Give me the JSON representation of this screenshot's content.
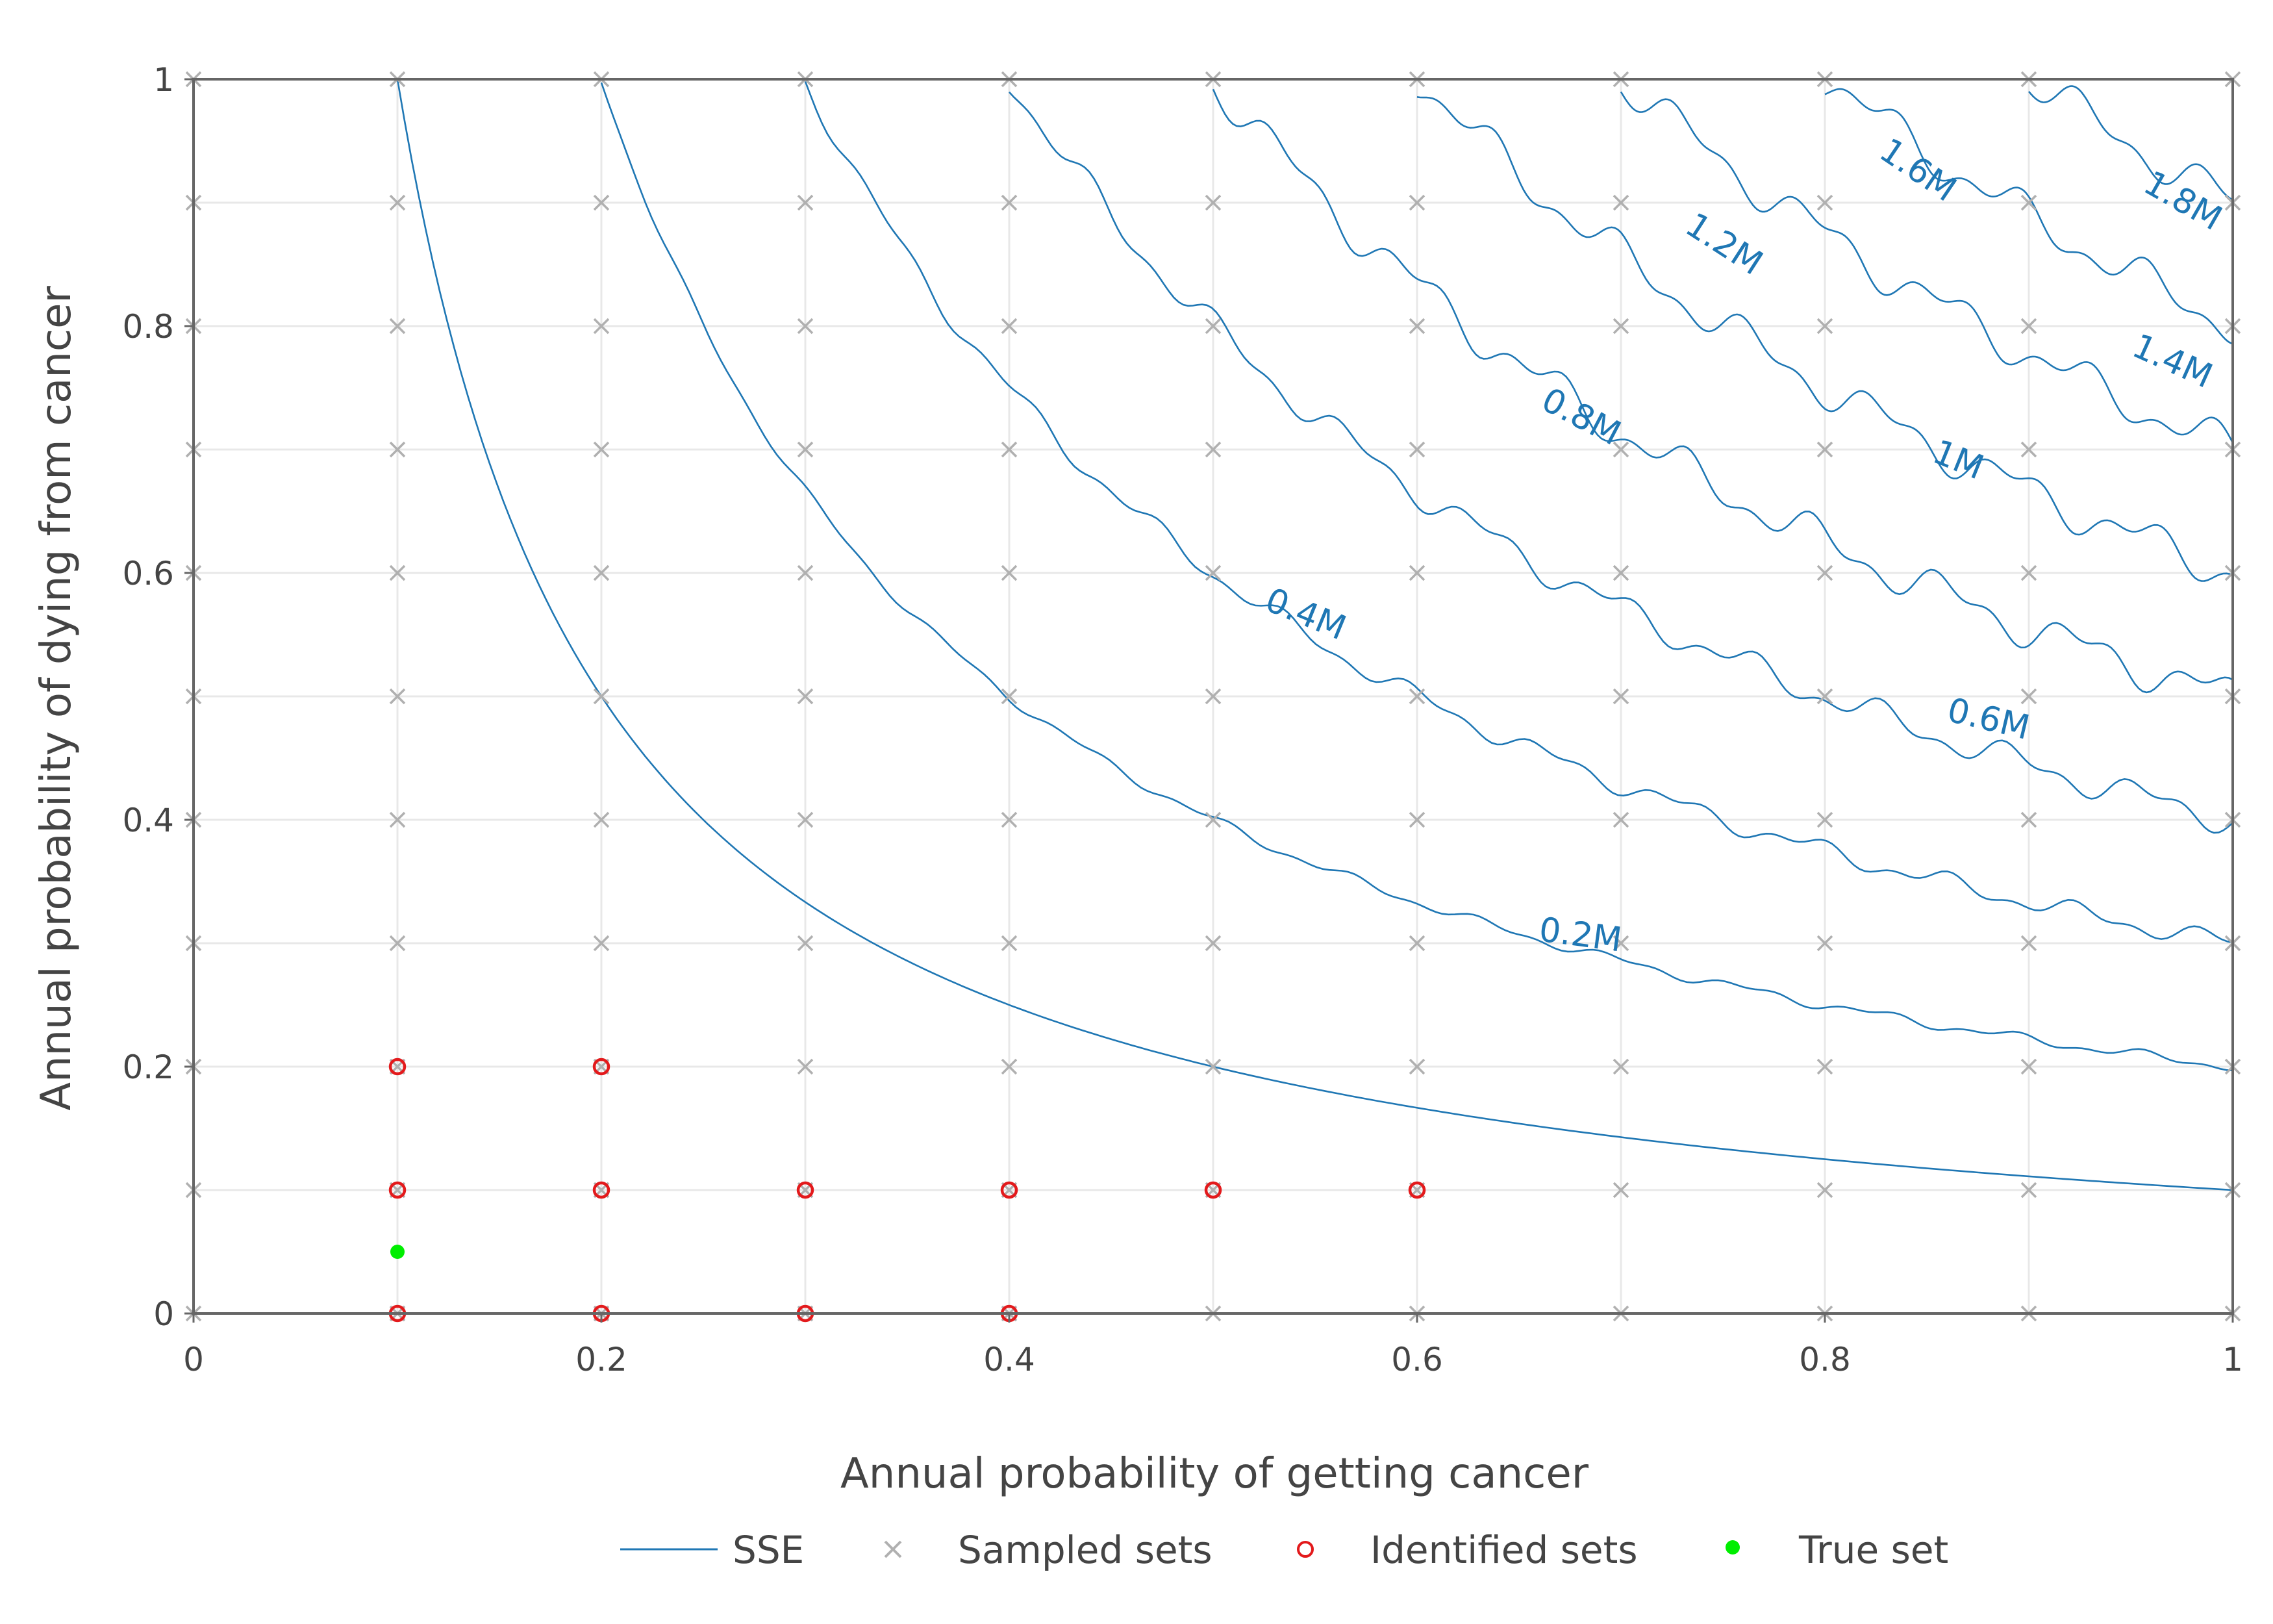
{
  "chart_data": {
    "type": "scatter",
    "xlabel": "Annual probability of getting cancer",
    "ylabel": "Annual probability of dying from cancer",
    "xlim": [
      0,
      1
    ],
    "ylim": [
      0,
      1
    ],
    "xticks": [
      0,
      0.2,
      0.4,
      0.6,
      0.8,
      1
    ],
    "xtick_labels": [
      "0",
      "0.2",
      "0.4",
      "0.6",
      "0.8",
      "1"
    ],
    "yticks": [
      0,
      0.2,
      0.4,
      0.6,
      0.8,
      1
    ],
    "ytick_labels": [
      "0",
      "0.2",
      "0.4",
      "0.6",
      "0.8",
      "1"
    ],
    "grid": true,
    "legend_position": "bottom",
    "colors": {
      "contour": "#1f77b4",
      "sampled": "#b0b0b0",
      "identified": "#e31a1c",
      "true": "#00ee00",
      "grid": "#e8e8e8",
      "axis": "#666666"
    },
    "series": [
      {
        "name": "SSE",
        "kind": "contour",
        "levels": [
          {
            "label": "0.2M",
            "k": 0.1,
            "label_at": [
              0.68,
              0.305
            ]
          },
          {
            "label": "0.4M",
            "k": 0.2,
            "label_at": [
              0.545,
              0.565
            ]
          },
          {
            "label": "0.6M",
            "k": 0.3,
            "label_at": [
              0.88,
              0.48
            ]
          },
          {
            "label": "0.8M",
            "k": 0.4,
            "label_at": [
              0.68,
              0.725
            ]
          },
          {
            "label": "1M",
            "k": 0.5,
            "label_at": [
              0.865,
              0.69
            ]
          },
          {
            "label": "1.2M",
            "k": 0.6,
            "label_at": [
              0.75,
              0.865
            ]
          },
          {
            "label": "1.4M",
            "k": 0.7,
            "label_at": [
              0.97,
              0.77
            ]
          },
          {
            "label": "1.6M",
            "k": 0.8,
            "label_at": [
              0.845,
              0.925
            ]
          },
          {
            "label": "1.8M",
            "k": 0.9,
            "label_at": [
              0.975,
              0.9
            ]
          }
        ]
      },
      {
        "name": "Sampled sets",
        "kind": "grid",
        "x": [
          0,
          0.1,
          0.2,
          0.3,
          0.4,
          0.5,
          0.6,
          0.7,
          0.8,
          0.9,
          1
        ],
        "y": [
          0,
          0.1,
          0.2,
          0.3,
          0.4,
          0.5,
          0.6,
          0.7,
          0.8,
          0.9,
          1
        ]
      },
      {
        "name": "Identified sets",
        "kind": "points",
        "points": [
          [
            0.1,
            0.2
          ],
          [
            0.2,
            0.2
          ],
          [
            0.1,
            0.1
          ],
          [
            0.2,
            0.1
          ],
          [
            0.3,
            0.1
          ],
          [
            0.4,
            0.1
          ],
          [
            0.5,
            0.1
          ],
          [
            0.6,
            0.1
          ],
          [
            0.1,
            0
          ],
          [
            0.2,
            0
          ],
          [
            0.3,
            0
          ],
          [
            0.4,
            0
          ]
        ]
      },
      {
        "name": "True set",
        "kind": "points",
        "points": [
          [
            0.1,
            0.05
          ]
        ]
      }
    ]
  },
  "legend": {
    "items": [
      {
        "label": "SSE",
        "symbol": "line"
      },
      {
        "label": "Sampled sets",
        "symbol": "x"
      },
      {
        "label": "Identified sets",
        "symbol": "open-circle"
      },
      {
        "label": "True set",
        "symbol": "dot"
      }
    ]
  }
}
